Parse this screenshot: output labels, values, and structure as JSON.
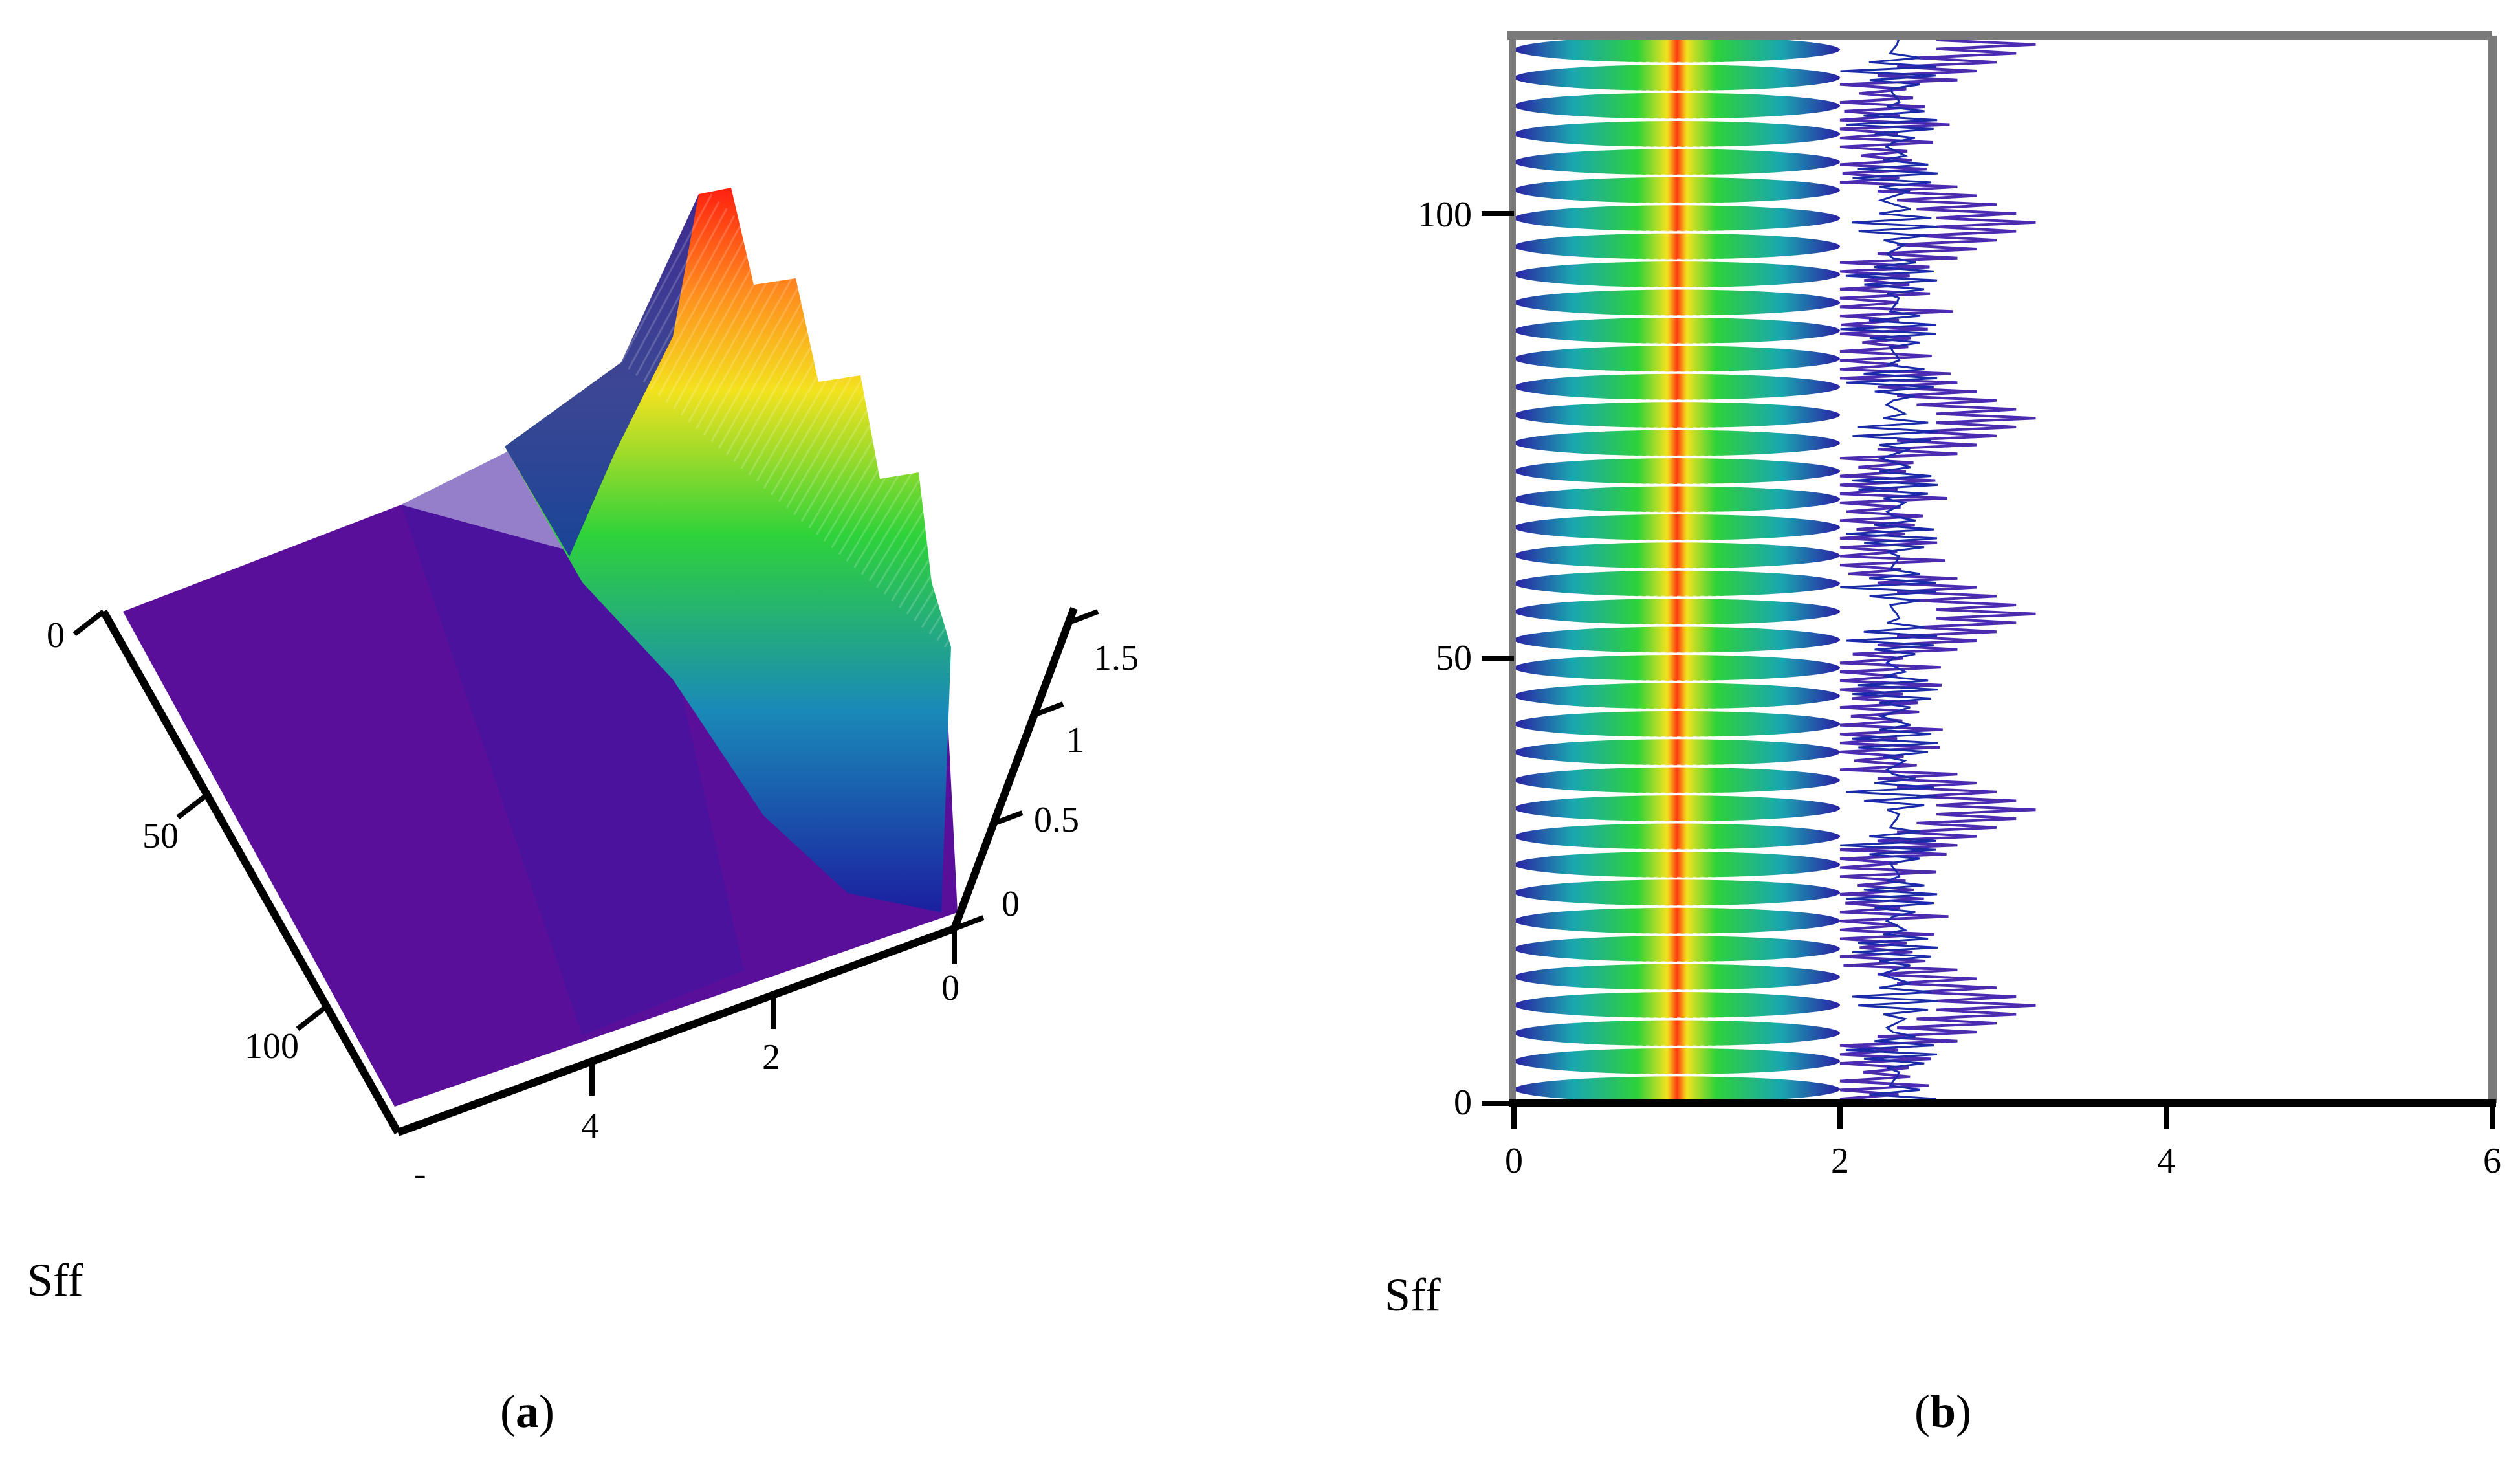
{
  "figure": {
    "panel_a": {
      "label": "Sff",
      "tag_letter": "a"
    },
    "panel_b": {
      "label": "Sff",
      "tag_letter": "b"
    }
  },
  "colors": {
    "low": "#5a0f9a",
    "mid_blue": "#1a2aa8",
    "teal": "#1aa6b0",
    "green": "#2ed23a",
    "yellow": "#f3e21e",
    "orange": "#ff8a1e",
    "red": "#ff2010",
    "axis": "#000000",
    "frame": "#7a7a7a",
    "contour_line": "#4b2bb0"
  },
  "chart_data": [
    {
      "type": "surface",
      "panel": "a",
      "xlabel": "",
      "ylabel": "",
      "zlabel": "",
      "x_axis": {
        "ticks": [
          0,
          2,
          4
        ],
        "tick_labels": [
          "0",
          "2",
          "4"
        ],
        "end_label": "-"
      },
      "y_axis": {
        "ticks": [
          0,
          50,
          100
        ],
        "tick_labels": [
          "0",
          "50",
          "100"
        ]
      },
      "z_axis": {
        "ticks": [
          0,
          0.5,
          1,
          1.5
        ],
        "tick_labels": [
          "0",
          "0.5",
          "1",
          "1.5"
        ],
        "range": [
          0,
          1.5
        ]
      },
      "description_values": {
        "ridge_center_x": 1,
        "ridge_width_x": 2,
        "peak_z": 1.5,
        "n_peaks_visible": 5,
        "y_range": [
          0,
          120
        ]
      }
    },
    {
      "type": "heatmap",
      "panel": "b",
      "xlabel": "",
      "ylabel": "",
      "x_axis": {
        "ticks": [
          0,
          2,
          4,
          6
        ],
        "tick_labels": [
          "0",
          "2",
          "4",
          "6"
        ],
        "range": [
          0,
          6
        ]
      },
      "y_axis": {
        "ticks": [
          0,
          50,
          100
        ],
        "tick_labels": [
          "0",
          "50",
          "100"
        ],
        "range": [
          0,
          120
        ]
      },
      "band_center_x": 1,
      "band_half_width_x": 1,
      "n_bands": 38,
      "lobe_peak_y": [
        11,
        33,
        55,
        77,
        99,
        119
      ],
      "lobe_extent_x": 3.2,
      "baseline_extent_x": 2.7
    }
  ]
}
